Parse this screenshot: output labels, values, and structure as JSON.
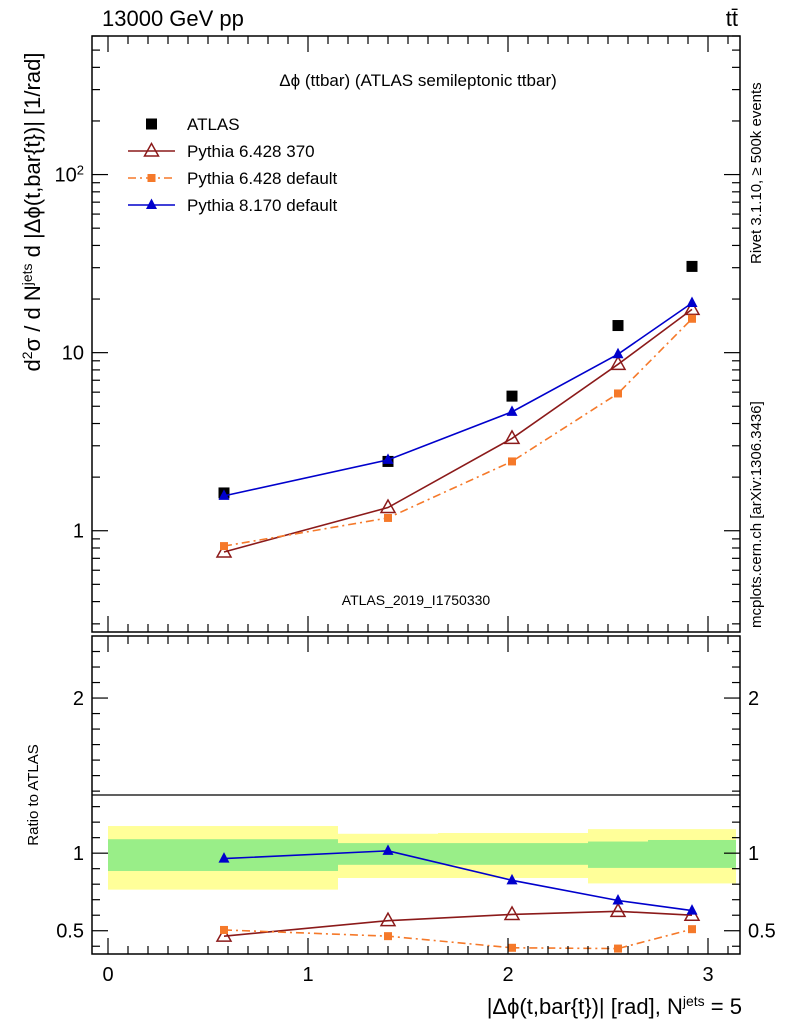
{
  "header": {
    "left": "13000 GeV pp",
    "right": "tt̄"
  },
  "side_labels": {
    "rivet": "Rivet 3.1.10, ≥ 500k events",
    "mcplots": "mcplots.cern.ch [arXiv:1306.3436]"
  },
  "watermark": "ATLAS_2019_I1750330",
  "chart_data": [
    {
      "type": "line",
      "title": "Δϕ (ttbar) (ATLAS semileptonic ttbar)",
      "ylabel": "d²σ / d N^jets d |Δϕ(t,bar{t})| [1/rad]",
      "yscale": "log",
      "xlim": [
        -0.08,
        3.16
      ],
      "ylim": [
        0.27,
        600
      ],
      "y_ticks": [
        {
          "value": 1,
          "label": "1"
        },
        {
          "value": 10,
          "label": "10"
        },
        {
          "value": 100,
          "label": "10²"
        }
      ],
      "legend_position": "top-left",
      "series": [
        {
          "name": "ATLAS",
          "style": "data",
          "color": "#000000",
          "marker": "square",
          "x": [
            0.58,
            1.4,
            2.02,
            2.55,
            2.92
          ],
          "y": [
            1.63,
            2.45,
            5.7,
            14.2,
            30.5
          ]
        },
        {
          "name": "Pythia 6.428 370",
          "style": "solid",
          "color": "#8b1a1a",
          "marker": "open-triangle",
          "x": [
            0.58,
            1.4,
            2.02,
            2.55,
            2.92
          ],
          "y": [
            0.76,
            1.35,
            3.3,
            8.6,
            17.5
          ]
        },
        {
          "name": "Pythia 6.428 default",
          "style": "dashdot",
          "color": "#f5792a",
          "marker": "small-square",
          "x": [
            0.58,
            1.4,
            2.02,
            2.55,
            2.92
          ],
          "y": [
            0.82,
            1.18,
            2.45,
            5.9,
            15.5
          ]
        },
        {
          "name": "Pythia 8.170 default",
          "style": "solid",
          "color": "#0000cc",
          "marker": "filled-triangle",
          "x": [
            0.58,
            1.4,
            2.02,
            2.55,
            2.92
          ],
          "y": [
            1.57,
            2.5,
            4.65,
            9.8,
            19.0
          ]
        }
      ]
    },
    {
      "type": "line",
      "ylabel": "Ratio to ATLAS",
      "xlabel": "|Δϕ(t,bar{t})| [rad], N^jets = 5",
      "xlim": [
        -0.08,
        3.16
      ],
      "ylim": [
        0.35,
        2.4
      ],
      "x_ticks": [
        0,
        1,
        2,
        3
      ],
      "y_ticks": [
        {
          "value": 0.5,
          "label": "0.5"
        },
        {
          "value": 1,
          "label": "1"
        },
        {
          "value": 2,
          "label": "2"
        }
      ],
      "bands": [
        {
          "x0": 0.0,
          "x1": 1.15,
          "inner": [
            0.885,
            1.09
          ],
          "outer": [
            0.765,
            1.175
          ]
        },
        {
          "x0": 1.15,
          "x1": 1.65,
          "inner": [
            0.925,
            1.065
          ],
          "outer": [
            0.84,
            1.125
          ]
        },
        {
          "x0": 1.65,
          "x1": 2.4,
          "inner": [
            0.925,
            1.065
          ],
          "outer": [
            0.84,
            1.13
          ]
        },
        {
          "x0": 2.4,
          "x1": 2.7,
          "inner": [
            0.905,
            1.075
          ],
          "outer": [
            0.805,
            1.155
          ]
        },
        {
          "x0": 2.7,
          "x1": 3.14,
          "inner": [
            0.905,
            1.085
          ],
          "outer": [
            0.805,
            1.155
          ]
        }
      ],
      "series": [
        {
          "name": "Pythia 6.428 370",
          "style": "solid",
          "color": "#8b1a1a",
          "marker": "open-triangle",
          "x": [
            0.58,
            1.4,
            2.02,
            2.55,
            2.92
          ],
          "y": [
            0.465,
            0.565,
            0.605,
            0.625,
            0.6
          ]
        },
        {
          "name": "Pythia 6.428 default",
          "style": "dashdot",
          "color": "#f5792a",
          "marker": "small-square",
          "x": [
            0.58,
            1.4,
            2.02,
            2.55,
            2.92
          ],
          "y": [
            0.505,
            0.465,
            0.39,
            0.385,
            0.51
          ]
        },
        {
          "name": "Pythia 8.170 default",
          "style": "solid",
          "color": "#0000cc",
          "marker": "filled-triangle",
          "x": [
            0.58,
            1.4,
            2.02,
            2.55,
            2.92
          ],
          "y": [
            0.965,
            1.015,
            0.825,
            0.695,
            0.63
          ]
        }
      ]
    }
  ]
}
